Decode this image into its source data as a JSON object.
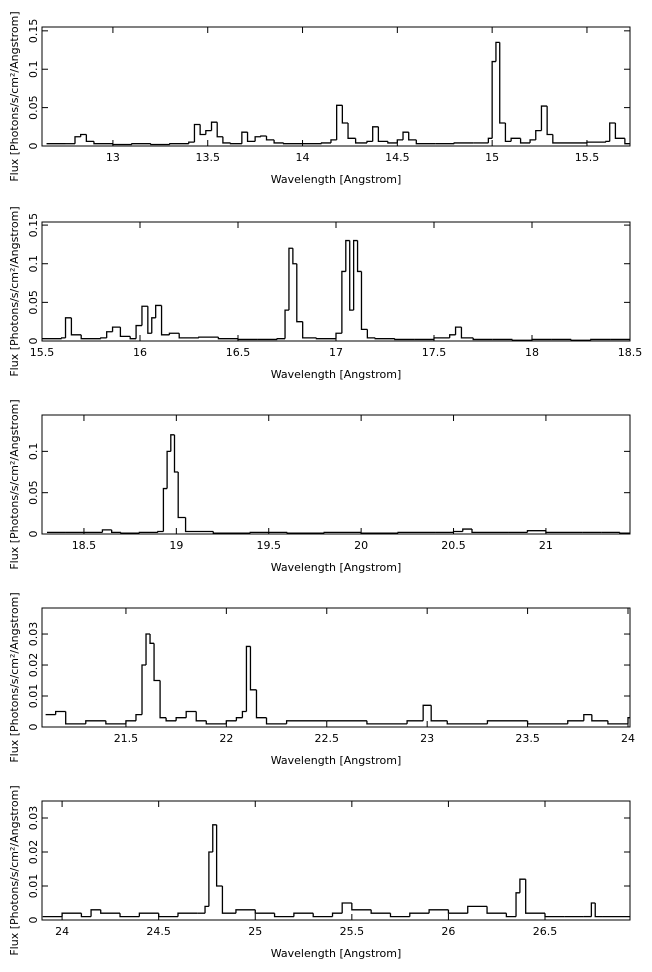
{
  "chart_data": [
    {
      "type": "step",
      "color": "#000000",
      "xlabel": "Wavelength [Angstrom]",
      "ylabel": "Flux [Photons/s/cm²/Angstrom]",
      "xlim": [
        12.626,
        15.727
      ],
      "ylim": [
        0,
        0.155
      ],
      "xticks": [
        13,
        13.5,
        14,
        14.5,
        15,
        15.5
      ],
      "yticks": [
        0,
        0.05,
        0.1,
        0.15
      ],
      "x": [
        12.65,
        12.75,
        12.8,
        12.83,
        12.86,
        12.9,
        13.0,
        13.1,
        13.2,
        13.3,
        13.4,
        13.43,
        13.46,
        13.49,
        13.52,
        13.55,
        13.58,
        13.62,
        13.68,
        13.71,
        13.75,
        13.78,
        13.81,
        13.85,
        13.9,
        14.0,
        14.1,
        14.15,
        14.18,
        14.21,
        14.24,
        14.28,
        14.34,
        14.37,
        14.4,
        14.45,
        14.5,
        14.53,
        14.56,
        14.6,
        14.7,
        14.8,
        14.9,
        14.98,
        15.0,
        15.02,
        15.04,
        15.07,
        15.1,
        15.15,
        15.2,
        15.23,
        15.26,
        15.29,
        15.32,
        15.4,
        15.5,
        15.6,
        15.62,
        15.65,
        15.7
      ],
      "values": [
        0.003,
        0.003,
        0.012,
        0.015,
        0.006,
        0.003,
        0.002,
        0.003,
        0.002,
        0.003,
        0.005,
        0.028,
        0.015,
        0.02,
        0.031,
        0.012,
        0.004,
        0.003,
        0.018,
        0.006,
        0.012,
        0.013,
        0.008,
        0.004,
        0.003,
        0.003,
        0.004,
        0.008,
        0.053,
        0.03,
        0.01,
        0.004,
        0.006,
        0.025,
        0.006,
        0.004,
        0.008,
        0.018,
        0.008,
        0.003,
        0.003,
        0.004,
        0.004,
        0.01,
        0.11,
        0.135,
        0.03,
        0.006,
        0.01,
        0.004,
        0.008,
        0.02,
        0.052,
        0.015,
        0.004,
        0.004,
        0.005,
        0.006,
        0.03,
        0.01,
        0.003
      ]
    },
    {
      "type": "step",
      "color": "#000000",
      "xlabel": "Wavelength [Angstrom]",
      "ylabel": "Flux [Photons/s/cm²/Angstrom]",
      "xlim": [
        15.5,
        18.5
      ],
      "ylim": [
        0,
        0.154
      ],
      "xticks": [
        15.5,
        16,
        16.5,
        17,
        17.5,
        18,
        18.5
      ],
      "yticks": [
        0,
        0.05,
        0.1,
        0.15
      ],
      "x": [
        15.5,
        15.6,
        15.62,
        15.65,
        15.7,
        15.8,
        15.83,
        15.86,
        15.9,
        15.95,
        15.98,
        16.01,
        16.04,
        16.06,
        16.08,
        16.11,
        16.15,
        16.2,
        16.3,
        16.4,
        16.5,
        16.6,
        16.7,
        16.74,
        16.76,
        16.78,
        16.8,
        16.83,
        16.9,
        17.0,
        17.03,
        17.05,
        17.07,
        17.09,
        17.11,
        17.13,
        17.16,
        17.2,
        17.3,
        17.4,
        17.5,
        17.58,
        17.61,
        17.64,
        17.7,
        17.8,
        17.9,
        18.0,
        18.1,
        18.2,
        18.3,
        18.4
      ],
      "values": [
        0.003,
        0.004,
        0.03,
        0.008,
        0.003,
        0.004,
        0.012,
        0.018,
        0.006,
        0.003,
        0.02,
        0.045,
        0.01,
        0.03,
        0.046,
        0.008,
        0.01,
        0.004,
        0.005,
        0.003,
        0.002,
        0.002,
        0.003,
        0.04,
        0.12,
        0.1,
        0.025,
        0.004,
        0.003,
        0.01,
        0.09,
        0.13,
        0.04,
        0.13,
        0.09,
        0.015,
        0.004,
        0.003,
        0.002,
        0.002,
        0.004,
        0.008,
        0.018,
        0.004,
        0.002,
        0.002,
        0.001,
        0.002,
        0.002,
        0.001,
        0.002,
        0.002
      ]
    },
    {
      "type": "step",
      "color": "#000000",
      "xlabel": "Wavelength [Angstrom]",
      "ylabel": "Flux [Photons/s/cm²/Angstrom]",
      "xlim": [
        18.273,
        21.455
      ],
      "ylim": [
        0,
        0.144
      ],
      "xticks": [
        18.5,
        19,
        19.5,
        20,
        20.5,
        21
      ],
      "yticks": [
        0,
        0.05,
        0.1
      ],
      "x": [
        18.3,
        18.4,
        18.5,
        18.6,
        18.65,
        18.7,
        18.8,
        18.9,
        18.93,
        18.95,
        18.97,
        18.99,
        19.01,
        19.05,
        19.2,
        19.4,
        19.6,
        19.8,
        20.0,
        20.2,
        20.4,
        20.5,
        20.55,
        20.6,
        20.8,
        20.9,
        21.0,
        21.2,
        21.3,
        21.4
      ],
      "values": [
        0.002,
        0.002,
        0.002,
        0.005,
        0.002,
        0.001,
        0.002,
        0.003,
        0.055,
        0.1,
        0.12,
        0.075,
        0.02,
        0.003,
        0.001,
        0.002,
        0.001,
        0.002,
        0.001,
        0.002,
        0.002,
        0.003,
        0.006,
        0.002,
        0.002,
        0.004,
        0.002,
        0.002,
        0.002,
        0.001
      ]
    },
    {
      "type": "step",
      "color": "#000000",
      "xlabel": "Wavelength [Angstrom]",
      "ylabel": "Flux [Photons/s/cm²/Angstrom]",
      "xlim": [
        21.082,
        24.01
      ],
      "ylim": [
        0,
        0.0384
      ],
      "xticks": [
        21.5,
        22,
        22.5,
        23,
        23.5,
        24
      ],
      "yticks": [
        0,
        0.01,
        0.02,
        0.03
      ],
      "x": [
        21.1,
        21.15,
        21.2,
        21.3,
        21.4,
        21.5,
        21.55,
        21.58,
        21.6,
        21.62,
        21.64,
        21.67,
        21.7,
        21.75,
        21.8,
        21.85,
        21.9,
        22.0,
        22.05,
        22.08,
        22.1,
        22.12,
        22.15,
        22.2,
        22.3,
        22.5,
        22.7,
        22.9,
        22.98,
        23.02,
        23.1,
        23.3,
        23.5,
        23.7,
        23.78,
        23.82,
        23.9,
        24.0
      ],
      "values": [
        0.004,
        0.005,
        0.001,
        0.002,
        0.001,
        0.002,
        0.004,
        0.02,
        0.03,
        0.027,
        0.015,
        0.003,
        0.002,
        0.003,
        0.005,
        0.002,
        0.001,
        0.002,
        0.003,
        0.005,
        0.026,
        0.012,
        0.003,
        0.001,
        0.002,
        0.002,
        0.001,
        0.002,
        0.007,
        0.002,
        0.001,
        0.002,
        0.001,
        0.002,
        0.004,
        0.002,
        0.001,
        0.003
      ]
    },
    {
      "type": "step",
      "color": "#000000",
      "xlabel": "Wavelength [Angstrom]",
      "ylabel": "Flux [Photons/s/cm²/Angstrom]",
      "xlim": [
        23.896,
        26.94
      ],
      "ylim": [
        0,
        0.035
      ],
      "xticks": [
        24,
        24.5,
        25,
        25.5,
        26,
        26.5
      ],
      "yticks": [
        0,
        0.01,
        0.02,
        0.03
      ],
      "x": [
        23.9,
        24.0,
        24.1,
        24.15,
        24.2,
        24.3,
        24.4,
        24.5,
        24.6,
        24.7,
        24.74,
        24.76,
        24.78,
        24.8,
        24.83,
        24.9,
        25.0,
        25.1,
        25.2,
        25.3,
        25.4,
        25.45,
        25.5,
        25.6,
        25.7,
        25.8,
        25.9,
        26.0,
        26.1,
        26.2,
        26.3,
        26.35,
        26.37,
        26.4,
        26.5,
        26.6,
        26.7,
        26.74,
        26.76,
        26.8
      ],
      "values": [
        0.001,
        0.002,
        0.001,
        0.003,
        0.002,
        0.001,
        0.002,
        0.001,
        0.002,
        0.002,
        0.004,
        0.02,
        0.028,
        0.01,
        0.002,
        0.003,
        0.002,
        0.001,
        0.002,
        0.001,
        0.002,
        0.005,
        0.003,
        0.002,
        0.001,
        0.002,
        0.003,
        0.002,
        0.004,
        0.002,
        0.001,
        0.008,
        0.012,
        0.002,
        0.001,
        0.001,
        0.001,
        0.005,
        0.001,
        0.001
      ]
    }
  ]
}
